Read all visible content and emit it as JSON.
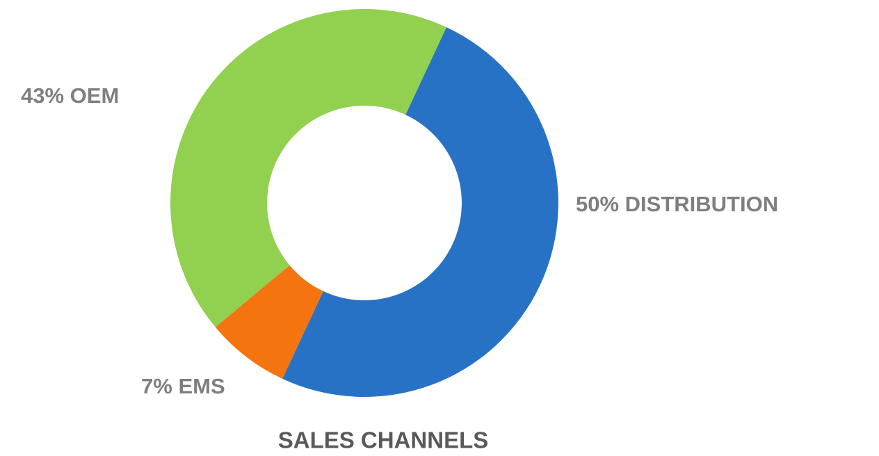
{
  "chart_data": {
    "type": "donut",
    "title": "SALES CHANNELS",
    "categories": [
      "DISTRIBUTION",
      "EMS",
      "OEM"
    ],
    "values": [
      50,
      7,
      43
    ],
    "value_labels": [
      "50%",
      "7%",
      "43%"
    ],
    "colors": [
      "#2872c6",
      "#f4750f",
      "#92d050"
    ]
  }
}
